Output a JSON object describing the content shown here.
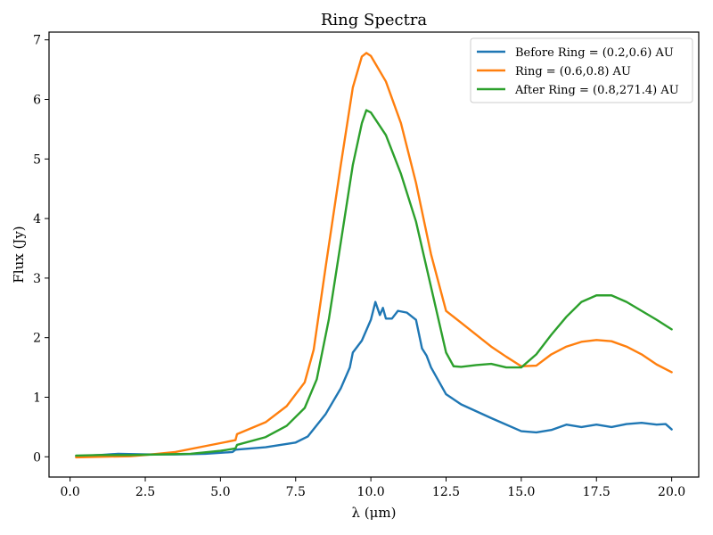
{
  "chart_data": {
    "type": "line",
    "title": "Ring Spectra",
    "xlabel": "λ (μm)",
    "ylabel": "Flux (Jy)",
    "xlim": [
      -0.7,
      20.9
    ],
    "ylim": [
      -0.34,
      7.13
    ],
    "xticks": [
      0.0,
      2.5,
      5.0,
      7.5,
      10.0,
      12.5,
      15.0,
      17.5,
      20.0
    ],
    "xtick_labels": [
      "0.0",
      "2.5",
      "5.0",
      "7.5",
      "10.0",
      "12.5",
      "15.0",
      "17.5",
      "20.0"
    ],
    "yticks": [
      0,
      1,
      2,
      3,
      4,
      5,
      6,
      7
    ],
    "ytick_labels": [
      "0",
      "1",
      "2",
      "3",
      "4",
      "5",
      "6",
      "7"
    ],
    "grid": false,
    "legend_position": "top-right",
    "series": [
      {
        "name": "Before Ring = (0.2,0.6) AU",
        "color": "#1f77b4",
        "points": [
          [
            0.2,
            0.01
          ],
          [
            1.0,
            0.03
          ],
          [
            1.6,
            0.05
          ],
          [
            2.5,
            0.04
          ],
          [
            3.5,
            0.04
          ],
          [
            4.5,
            0.05
          ],
          [
            5.4,
            0.08
          ],
          [
            5.5,
            0.12
          ],
          [
            6.5,
            0.16
          ],
          [
            7.5,
            0.24
          ],
          [
            7.9,
            0.34
          ],
          [
            8.5,
            0.72
          ],
          [
            9.0,
            1.15
          ],
          [
            9.3,
            1.5
          ],
          [
            9.4,
            1.75
          ],
          [
            9.7,
            1.95
          ],
          [
            10.0,
            2.3
          ],
          [
            10.15,
            2.6
          ],
          [
            10.3,
            2.38
          ],
          [
            10.4,
            2.5
          ],
          [
            10.5,
            2.32
          ],
          [
            10.7,
            2.32
          ],
          [
            10.9,
            2.45
          ],
          [
            11.2,
            2.42
          ],
          [
            11.5,
            2.3
          ],
          [
            11.7,
            1.82
          ],
          [
            11.85,
            1.7
          ],
          [
            12.0,
            1.5
          ],
          [
            12.5,
            1.05
          ],
          [
            13.0,
            0.88
          ],
          [
            14.0,
            0.65
          ],
          [
            15.0,
            0.43
          ],
          [
            15.5,
            0.41
          ],
          [
            16.0,
            0.45
          ],
          [
            16.5,
            0.54
          ],
          [
            17.0,
            0.5
          ],
          [
            17.5,
            0.54
          ],
          [
            18.0,
            0.5
          ],
          [
            18.5,
            0.55
          ],
          [
            19.0,
            0.57
          ],
          [
            19.5,
            0.54
          ],
          [
            19.8,
            0.55
          ],
          [
            20.0,
            0.46
          ]
        ]
      },
      {
        "name": "Ring = (0.6,0.8) AU",
        "color": "#ff7f0e",
        "points": [
          [
            0.2,
            -0.01
          ],
          [
            1.0,
            0.0
          ],
          [
            2.0,
            0.01
          ],
          [
            2.5,
            0.03
          ],
          [
            3.5,
            0.08
          ],
          [
            4.5,
            0.18
          ],
          [
            5.5,
            0.28
          ],
          [
            5.55,
            0.38
          ],
          [
            6.5,
            0.58
          ],
          [
            7.2,
            0.85
          ],
          [
            7.8,
            1.25
          ],
          [
            8.1,
            1.8
          ],
          [
            8.5,
            3.2
          ],
          [
            9.0,
            4.9
          ],
          [
            9.4,
            6.2
          ],
          [
            9.7,
            6.72
          ],
          [
            9.85,
            6.78
          ],
          [
            10.0,
            6.73
          ],
          [
            10.5,
            6.3
          ],
          [
            11.0,
            5.6
          ],
          [
            11.5,
            4.6
          ],
          [
            12.0,
            3.4
          ],
          [
            12.5,
            2.45
          ],
          [
            13.0,
            2.25
          ],
          [
            14.0,
            1.85
          ],
          [
            14.5,
            1.68
          ],
          [
            15.0,
            1.52
          ],
          [
            15.5,
            1.53
          ],
          [
            16.0,
            1.72
          ],
          [
            16.5,
            1.85
          ],
          [
            17.0,
            1.93
          ],
          [
            17.5,
            1.96
          ],
          [
            18.0,
            1.94
          ],
          [
            18.5,
            1.85
          ],
          [
            19.0,
            1.72
          ],
          [
            19.5,
            1.55
          ],
          [
            20.0,
            1.42
          ]
        ]
      },
      {
        "name": "After Ring = (0.8,271.4) AU",
        "color": "#2ca02c",
        "points": [
          [
            0.2,
            0.02
          ],
          [
            1.0,
            0.03
          ],
          [
            2.0,
            0.03
          ],
          [
            3.0,
            0.04
          ],
          [
            4.0,
            0.05
          ],
          [
            5.0,
            0.1
          ],
          [
            5.5,
            0.14
          ],
          [
            5.55,
            0.2
          ],
          [
            6.5,
            0.33
          ],
          [
            7.2,
            0.52
          ],
          [
            7.8,
            0.82
          ],
          [
            8.2,
            1.3
          ],
          [
            8.6,
            2.3
          ],
          [
            9.0,
            3.6
          ],
          [
            9.4,
            4.9
          ],
          [
            9.7,
            5.6
          ],
          [
            9.85,
            5.82
          ],
          [
            10.0,
            5.78
          ],
          [
            10.5,
            5.4
          ],
          [
            11.0,
            4.75
          ],
          [
            11.5,
            3.95
          ],
          [
            12.0,
            2.85
          ],
          [
            12.5,
            1.75
          ],
          [
            12.75,
            1.52
          ],
          [
            13.0,
            1.51
          ],
          [
            13.5,
            1.54
          ],
          [
            14.0,
            1.56
          ],
          [
            14.5,
            1.5
          ],
          [
            15.0,
            1.5
          ],
          [
            15.5,
            1.72
          ],
          [
            16.0,
            2.05
          ],
          [
            16.5,
            2.35
          ],
          [
            17.0,
            2.6
          ],
          [
            17.5,
            2.71
          ],
          [
            18.0,
            2.71
          ],
          [
            18.5,
            2.6
          ],
          [
            19.0,
            2.45
          ],
          [
            19.5,
            2.3
          ],
          [
            20.0,
            2.14
          ]
        ]
      }
    ]
  }
}
